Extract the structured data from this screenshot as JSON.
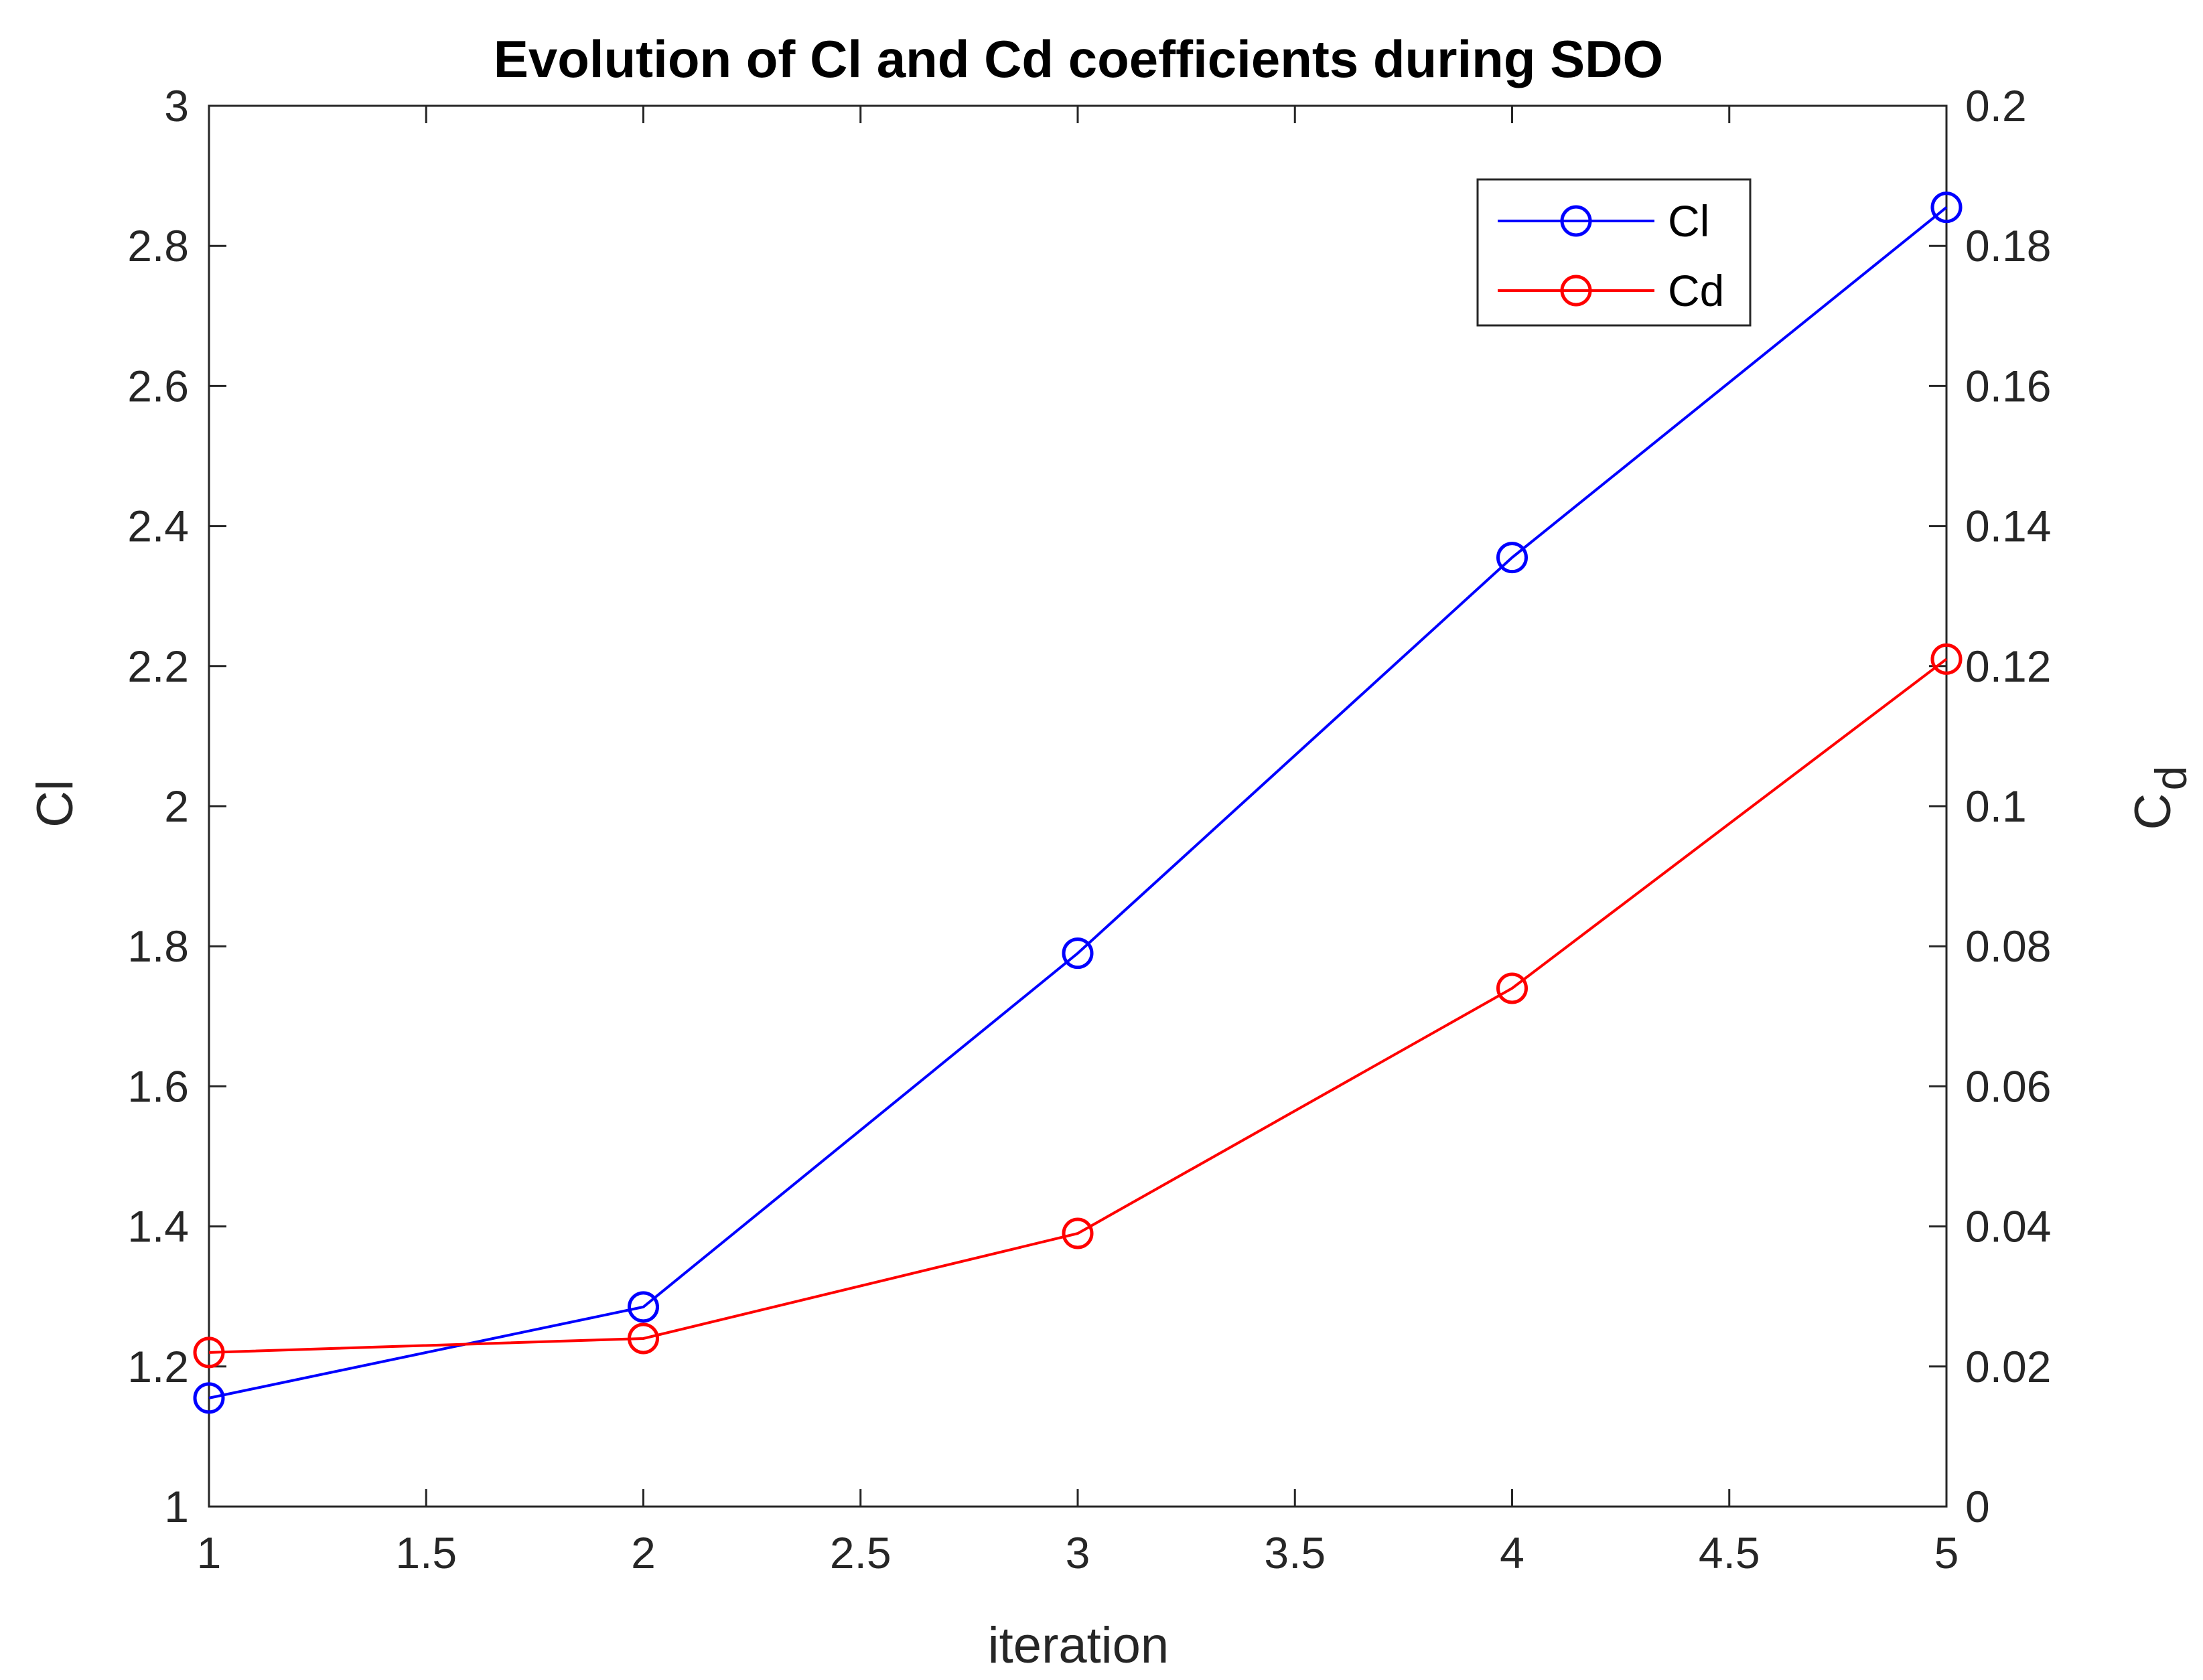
{
  "chart_data": {
    "type": "line",
    "title": "Evolution of Cl and Cd coefficients during SDO",
    "xlabel": "iteration",
    "ylabel_left": "Cl",
    "ylabel_right_main": "C",
    "ylabel_right_sub": "d",
    "x": [
      1,
      2,
      3,
      4,
      5
    ],
    "xlim": [
      1,
      5
    ],
    "xticks": [
      "1",
      "1.5",
      "2",
      "2.5",
      "3",
      "3.5",
      "4",
      "4.5",
      "5"
    ],
    "ylim_left": [
      1,
      3
    ],
    "yticks_left": [
      "1",
      "1.2",
      "1.4",
      "1.6",
      "1.8",
      "2",
      "2.2",
      "2.4",
      "2.6",
      "2.8",
      "3"
    ],
    "ylim_right": [
      0,
      0.2
    ],
    "yticks_right": [
      "0",
      "0.02",
      "0.04",
      "0.06",
      "0.08",
      "0.1",
      "0.12",
      "0.14",
      "0.16",
      "0.18",
      "0.2"
    ],
    "grid": false,
    "legend_position": "top-right",
    "series": [
      {
        "name": "Cl",
        "axis": "left",
        "color": "#0000ff",
        "marker": "circle",
        "values": [
          1.155,
          1.285,
          1.79,
          2.355,
          2.855
        ]
      },
      {
        "name": "Cd",
        "axis": "right",
        "color": "#ff0000",
        "marker": "circle",
        "values": [
          0.022,
          0.024,
          0.039,
          0.074,
          0.121
        ]
      }
    ]
  }
}
